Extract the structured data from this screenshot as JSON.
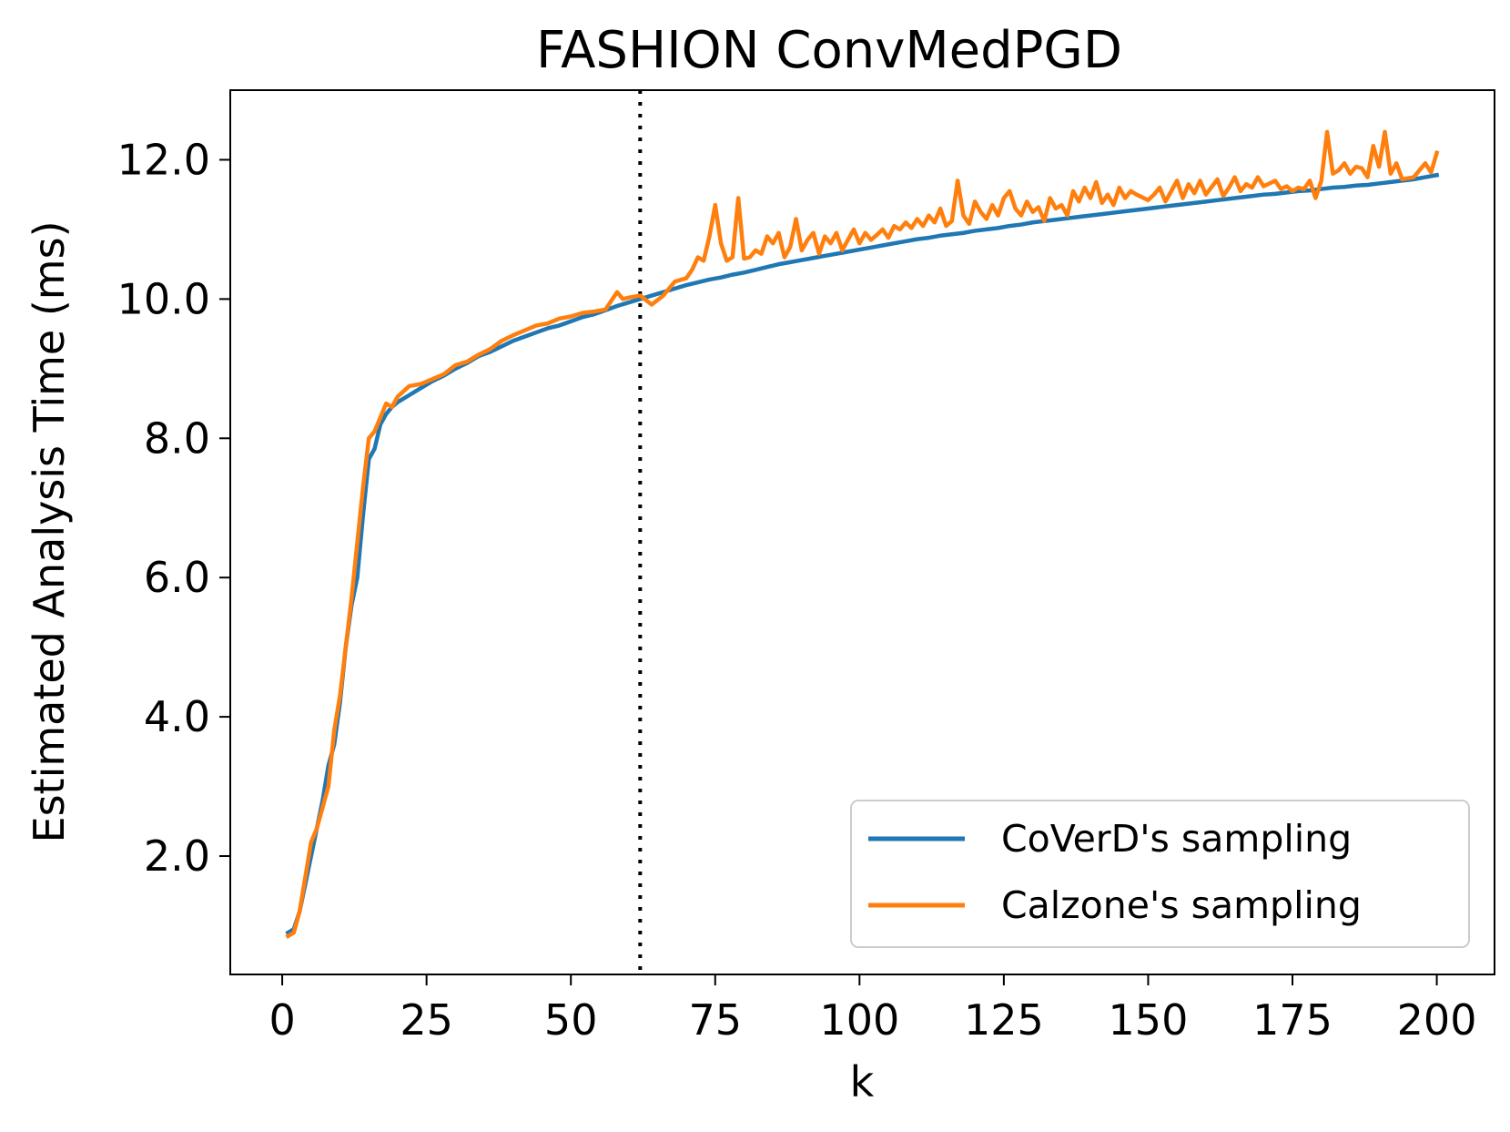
{
  "chart_data": {
    "type": "line",
    "title": "FASHION ConvMedPGD",
    "xlabel": "k",
    "ylabel": "Estimated Analysis Time (ms)",
    "xlim": [
      -9,
      210
    ],
    "ylim": [
      0.3,
      13.0
    ],
    "xticks": [
      0,
      25,
      50,
      75,
      100,
      125,
      150,
      175,
      200
    ],
    "yticks": [
      2.0,
      4.0,
      6.0,
      8.0,
      10.0,
      12.0
    ],
    "ytick_format": "0.0",
    "grid": false,
    "legend_position": "lower-right",
    "vline": {
      "x": 62,
      "style": "dotted",
      "color": "#000000"
    },
    "series": [
      {
        "name": "CoVerD's sampling",
        "color": "#1f77b4",
        "points": [
          [
            1,
            0.9
          ],
          [
            2,
            0.95
          ],
          [
            3,
            1.2
          ],
          [
            4,
            1.6
          ],
          [
            5,
            2.0
          ],
          [
            6,
            2.4
          ],
          [
            7,
            2.8
          ],
          [
            8,
            3.3
          ],
          [
            9,
            3.6
          ],
          [
            10,
            4.2
          ],
          [
            11,
            5.0
          ],
          [
            12,
            5.6
          ],
          [
            13,
            6.0
          ],
          [
            14,
            6.9
          ],
          [
            15,
            7.7
          ],
          [
            16,
            7.85
          ],
          [
            17,
            8.2
          ],
          [
            18,
            8.35
          ],
          [
            19,
            8.45
          ],
          [
            20,
            8.52
          ],
          [
            22,
            8.62
          ],
          [
            24,
            8.72
          ],
          [
            26,
            8.82
          ],
          [
            28,
            8.9
          ],
          [
            30,
            9.0
          ],
          [
            32,
            9.08
          ],
          [
            34,
            9.18
          ],
          [
            36,
            9.24
          ],
          [
            38,
            9.32
          ],
          [
            40,
            9.4
          ],
          [
            42,
            9.46
          ],
          [
            44,
            9.52
          ],
          [
            46,
            9.58
          ],
          [
            48,
            9.62
          ],
          [
            50,
            9.68
          ],
          [
            52,
            9.74
          ],
          [
            54,
            9.78
          ],
          [
            56,
            9.84
          ],
          [
            58,
            9.9
          ],
          [
            60,
            9.95
          ],
          [
            62,
            10.0
          ],
          [
            64,
            10.05
          ],
          [
            66,
            10.1
          ],
          [
            68,
            10.15
          ],
          [
            70,
            10.2
          ],
          [
            72,
            10.24
          ],
          [
            74,
            10.28
          ],
          [
            76,
            10.31
          ],
          [
            78,
            10.35
          ],
          [
            80,
            10.38
          ],
          [
            82,
            10.42
          ],
          [
            84,
            10.46
          ],
          [
            86,
            10.5
          ],
          [
            88,
            10.53
          ],
          [
            90,
            10.56
          ],
          [
            92,
            10.59
          ],
          [
            94,
            10.62
          ],
          [
            96,
            10.65
          ],
          [
            98,
            10.68
          ],
          [
            100,
            10.71
          ],
          [
            102,
            10.74
          ],
          [
            104,
            10.77
          ],
          [
            106,
            10.8
          ],
          [
            108,
            10.83
          ],
          [
            110,
            10.86
          ],
          [
            112,
            10.88
          ],
          [
            114,
            10.91
          ],
          [
            116,
            10.93
          ],
          [
            118,
            10.95
          ],
          [
            120,
            10.98
          ],
          [
            122,
            11.0
          ],
          [
            124,
            11.02
          ],
          [
            126,
            11.05
          ],
          [
            128,
            11.07
          ],
          [
            130,
            11.1
          ],
          [
            132,
            11.12
          ],
          [
            134,
            11.14
          ],
          [
            136,
            11.16
          ],
          [
            138,
            11.18
          ],
          [
            140,
            11.2
          ],
          [
            142,
            11.22
          ],
          [
            144,
            11.24
          ],
          [
            146,
            11.26
          ],
          [
            148,
            11.28
          ],
          [
            150,
            11.3
          ],
          [
            152,
            11.32
          ],
          [
            154,
            11.34
          ],
          [
            156,
            11.36
          ],
          [
            158,
            11.38
          ],
          [
            160,
            11.4
          ],
          [
            162,
            11.42
          ],
          [
            164,
            11.44
          ],
          [
            166,
            11.46
          ],
          [
            168,
            11.48
          ],
          [
            170,
            11.5
          ],
          [
            172,
            11.51
          ],
          [
            174,
            11.53
          ],
          [
            176,
            11.55
          ],
          [
            178,
            11.56
          ],
          [
            180,
            11.58
          ],
          [
            182,
            11.6
          ],
          [
            184,
            11.61
          ],
          [
            186,
            11.63
          ],
          [
            188,
            11.64
          ],
          [
            190,
            11.66
          ],
          [
            192,
            11.68
          ],
          [
            194,
            11.7
          ],
          [
            196,
            11.72
          ],
          [
            198,
            11.75
          ],
          [
            200,
            11.78
          ]
        ]
      },
      {
        "name": "Calzone's sampling",
        "color": "#ff7f0e",
        "points": [
          [
            1,
            0.85
          ],
          [
            2,
            0.9
          ],
          [
            3,
            1.2
          ],
          [
            4,
            1.7
          ],
          [
            5,
            2.2
          ],
          [
            6,
            2.4
          ],
          [
            7,
            2.7
          ],
          [
            8,
            3.0
          ],
          [
            9,
            3.8
          ],
          [
            10,
            4.3
          ],
          [
            11,
            5.0
          ],
          [
            12,
            5.7
          ],
          [
            13,
            6.5
          ],
          [
            14,
            7.3
          ],
          [
            15,
            8.0
          ],
          [
            16,
            8.1
          ],
          [
            17,
            8.3
          ],
          [
            18,
            8.5
          ],
          [
            19,
            8.45
          ],
          [
            20,
            8.6
          ],
          [
            22,
            8.75
          ],
          [
            24,
            8.78
          ],
          [
            26,
            8.85
          ],
          [
            28,
            8.92
          ],
          [
            30,
            9.05
          ],
          [
            32,
            9.1
          ],
          [
            34,
            9.2
          ],
          [
            36,
            9.28
          ],
          [
            38,
            9.4
          ],
          [
            40,
            9.48
          ],
          [
            42,
            9.55
          ],
          [
            44,
            9.62
          ],
          [
            46,
            9.65
          ],
          [
            48,
            9.72
          ],
          [
            50,
            9.75
          ],
          [
            52,
            9.8
          ],
          [
            54,
            9.82
          ],
          [
            56,
            9.85
          ],
          [
            58,
            10.1
          ],
          [
            59,
            10.0
          ],
          [
            60,
            10.02
          ],
          [
            62,
            10.05
          ],
          [
            64,
            9.92
          ],
          [
            66,
            10.05
          ],
          [
            68,
            10.25
          ],
          [
            70,
            10.3
          ],
          [
            71,
            10.42
          ],
          [
            72,
            10.6
          ],
          [
            73,
            10.55
          ],
          [
            74,
            10.9
          ],
          [
            75,
            11.35
          ],
          [
            76,
            10.8
          ],
          [
            77,
            10.55
          ],
          [
            78,
            10.6
          ],
          [
            79,
            11.45
          ],
          [
            80,
            10.58
          ],
          [
            81,
            10.6
          ],
          [
            82,
            10.7
          ],
          [
            83,
            10.65
          ],
          [
            84,
            10.9
          ],
          [
            85,
            10.8
          ],
          [
            86,
            10.95
          ],
          [
            87,
            10.6
          ],
          [
            88,
            10.75
          ],
          [
            89,
            11.15
          ],
          [
            90,
            10.7
          ],
          [
            91,
            10.85
          ],
          [
            92,
            10.95
          ],
          [
            93,
            10.65
          ],
          [
            94,
            10.9
          ],
          [
            95,
            10.8
          ],
          [
            96,
            10.95
          ],
          [
            97,
            10.7
          ],
          [
            98,
            10.85
          ],
          [
            99,
            11.0
          ],
          [
            100,
            10.8
          ],
          [
            101,
            10.95
          ],
          [
            102,
            10.85
          ],
          [
            103,
            10.92
          ],
          [
            104,
            11.0
          ],
          [
            105,
            10.88
          ],
          [
            106,
            11.05
          ],
          [
            107,
            11.0
          ],
          [
            108,
            11.1
          ],
          [
            109,
            11.02
          ],
          [
            110,
            11.15
          ],
          [
            111,
            11.05
          ],
          [
            112,
            11.2
          ],
          [
            113,
            11.1
          ],
          [
            114,
            11.3
          ],
          [
            115,
            11.05
          ],
          [
            116,
            11.12
          ],
          [
            117,
            11.7
          ],
          [
            118,
            11.2
          ],
          [
            119,
            11.08
          ],
          [
            120,
            11.4
          ],
          [
            121,
            11.25
          ],
          [
            122,
            11.15
          ],
          [
            123,
            11.35
          ],
          [
            124,
            11.2
          ],
          [
            125,
            11.45
          ],
          [
            126,
            11.55
          ],
          [
            127,
            11.3
          ],
          [
            128,
            11.2
          ],
          [
            129,
            11.4
          ],
          [
            130,
            11.25
          ],
          [
            131,
            11.32
          ],
          [
            132,
            11.12
          ],
          [
            133,
            11.45
          ],
          [
            134,
            11.3
          ],
          [
            135,
            11.35
          ],
          [
            136,
            11.2
          ],
          [
            137,
            11.55
          ],
          [
            138,
            11.4
          ],
          [
            139,
            11.6
          ],
          [
            140,
            11.45
          ],
          [
            141,
            11.68
          ],
          [
            142,
            11.38
          ],
          [
            143,
            11.5
          ],
          [
            144,
            11.35
          ],
          [
            145,
            11.6
          ],
          [
            146,
            11.45
          ],
          [
            147,
            11.55
          ],
          [
            148,
            11.5
          ],
          [
            150,
            11.42
          ],
          [
            151,
            11.5
          ],
          [
            152,
            11.6
          ],
          [
            153,
            11.4
          ],
          [
            154,
            11.55
          ],
          [
            155,
            11.7
          ],
          [
            156,
            11.45
          ],
          [
            157,
            11.65
          ],
          [
            158,
            11.52
          ],
          [
            159,
            11.7
          ],
          [
            160,
            11.5
          ],
          [
            162,
            11.72
          ],
          [
            163,
            11.48
          ],
          [
            164,
            11.6
          ],
          [
            165,
            11.75
          ],
          [
            166,
            11.55
          ],
          [
            167,
            11.65
          ],
          [
            168,
            11.6
          ],
          [
            169,
            11.75
          ],
          [
            170,
            11.62
          ],
          [
            172,
            11.7
          ],
          [
            173,
            11.58
          ],
          [
            174,
            11.62
          ],
          [
            175,
            11.55
          ],
          [
            176,
            11.6
          ],
          [
            177,
            11.58
          ],
          [
            178,
            11.7
          ],
          [
            179,
            11.45
          ],
          [
            180,
            11.7
          ],
          [
            181,
            12.4
          ],
          [
            182,
            11.8
          ],
          [
            183,
            11.85
          ],
          [
            184,
            11.95
          ],
          [
            185,
            11.8
          ],
          [
            186,
            11.9
          ],
          [
            187,
            11.88
          ],
          [
            188,
            11.75
          ],
          [
            189,
            12.2
          ],
          [
            190,
            11.9
          ],
          [
            191,
            12.4
          ],
          [
            192,
            11.8
          ],
          [
            193,
            11.95
          ],
          [
            194,
            11.72
          ],
          [
            196,
            11.75
          ],
          [
            198,
            11.95
          ],
          [
            199,
            11.82
          ],
          [
            200,
            12.1
          ]
        ]
      }
    ]
  }
}
